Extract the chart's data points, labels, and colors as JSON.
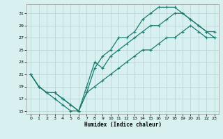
{
  "title": "",
  "xlabel": "Humidex (Indice chaleur)",
  "bg_color": "#d8f0f0",
  "grid_color": "#b8d8d8",
  "line_color": "#1a7a6e",
  "markersize": 2.5,
  "linewidth": 0.9,
  "xlim": [
    -0.5,
    23.5
  ],
  "ylim": [
    14.5,
    32.5
  ],
  "xticks": [
    0,
    1,
    2,
    3,
    4,
    5,
    6,
    7,
    8,
    9,
    10,
    11,
    12,
    13,
    14,
    15,
    16,
    17,
    18,
    19,
    20,
    21,
    22,
    23
  ],
  "yticks": [
    15,
    17,
    19,
    21,
    23,
    25,
    27,
    29,
    31
  ],
  "line1_x": [
    0,
    1,
    2,
    3,
    4,
    5,
    6,
    7,
    8,
    9,
    10,
    11,
    12,
    13,
    14,
    15,
    16,
    17,
    18,
    19,
    20,
    21,
    22,
    23
  ],
  "line1_y": [
    21,
    19,
    18,
    18,
    17,
    16,
    15,
    19,
    23,
    22,
    24,
    25,
    26,
    27,
    28,
    29,
    29,
    30,
    31,
    31,
    30,
    29,
    28,
    28
  ],
  "line2_x": [
    0,
    1,
    2,
    3,
    4,
    5,
    6,
    7,
    8,
    9,
    10,
    11,
    12,
    13,
    14,
    15,
    16,
    17,
    18,
    19,
    20,
    21,
    22,
    23
  ],
  "line2_y": [
    21,
    19,
    18,
    18,
    17,
    16,
    15,
    18,
    22,
    24,
    25,
    27,
    27,
    28,
    30,
    31,
    32,
    32,
    32,
    31,
    30,
    29,
    28,
    27
  ],
  "line3_x": [
    0,
    1,
    2,
    3,
    4,
    5,
    6,
    7,
    8,
    9,
    10,
    11,
    12,
    13,
    14,
    15,
    16,
    17,
    18,
    19,
    20,
    21,
    22,
    23
  ],
  "line3_y": [
    21,
    19,
    18,
    17,
    16,
    15,
    15,
    18,
    19,
    20,
    21,
    22,
    23,
    24,
    25,
    25,
    26,
    27,
    27,
    28,
    29,
    28,
    27,
    27
  ]
}
